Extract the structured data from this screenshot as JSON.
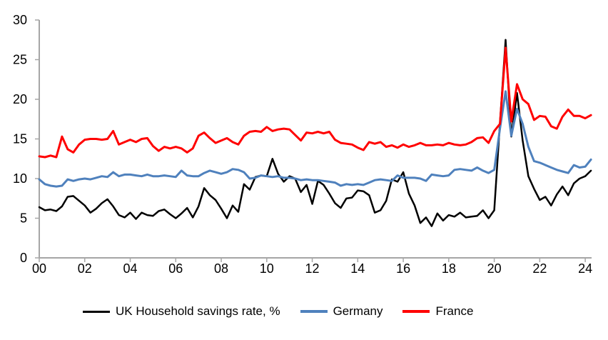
{
  "chart_data": {
    "type": "line",
    "title": "",
    "xlabel": "",
    "ylabel": "",
    "x_axis": {
      "tick_labels": [
        "00",
        "02",
        "04",
        "06",
        "08",
        "10",
        "12",
        "14",
        "16",
        "18",
        "20",
        "22",
        "24"
      ],
      "range": [
        2000,
        2024.25
      ],
      "frequency": "quarterly",
      "quarters_per_tick": 8
    },
    "y_axis": {
      "tick_labels": [
        "0",
        "5",
        "10",
        "15",
        "20",
        "25",
        "30"
      ],
      "ticks": [
        0,
        5,
        10,
        15,
        20,
        25,
        30
      ],
      "range": [
        0,
        30
      ]
    },
    "grid": "off",
    "legend_position": "bottom",
    "colors": {
      "axis": "#a6a6a6",
      "text": "#000000",
      "background": "#ffffff",
      "uk": "#000000",
      "germany": "#4f81bd",
      "france": "#ff0000"
    },
    "series": [
      {
        "name": "UK Household savings rate, %",
        "color": "#000000",
        "values": [
          6.4,
          6.0,
          6.1,
          5.9,
          6.5,
          7.7,
          7.8,
          7.2,
          6.6,
          5.7,
          6.2,
          6.9,
          7.4,
          6.5,
          5.4,
          5.1,
          5.7,
          4.9,
          5.7,
          5.4,
          5.3,
          5.9,
          6.1,
          5.5,
          5.0,
          5.6,
          6.3,
          5.1,
          6.5,
          8.8,
          7.9,
          7.3,
          6.2,
          5.0,
          6.6,
          5.8,
          9.3,
          8.6,
          10.2,
          10.4,
          10.3,
          12.5,
          10.6,
          9.6,
          10.3,
          10.0,
          8.3,
          9.2,
          6.8,
          9.7,
          9.2,
          8.1,
          6.9,
          6.3,
          7.5,
          7.6,
          8.5,
          8.4,
          7.9,
          5.7,
          6.0,
          7.2,
          9.9,
          9.6,
          10.8,
          8.1,
          6.6,
          4.4,
          5.1,
          4.0,
          5.6,
          4.7,
          5.4,
          5.2,
          5.7,
          5.1,
          5.2,
          5.3,
          6.0,
          5.0,
          6.0,
          17.0,
          27.5,
          15.3,
          20.8,
          14.8,
          10.3,
          8.7,
          7.3,
          7.7,
          6.6,
          8.0,
          9.0,
          7.9,
          9.4,
          10.0,
          10.3,
          11.0
        ]
      },
      {
        "name": "Germany",
        "color": "#4f81bd",
        "values": [
          9.9,
          9.3,
          9.1,
          9.0,
          9.1,
          9.9,
          9.7,
          9.9,
          10.0,
          9.9,
          10.1,
          10.3,
          10.2,
          10.8,
          10.3,
          10.5,
          10.5,
          10.4,
          10.3,
          10.5,
          10.3,
          10.3,
          10.4,
          10.3,
          10.2,
          11.0,
          10.4,
          10.3,
          10.3,
          10.7,
          11.0,
          10.8,
          10.6,
          10.8,
          11.2,
          11.1,
          10.8,
          10.0,
          10.1,
          10.4,
          10.3,
          10.2,
          10.3,
          10.1,
          10.1,
          10.0,
          9.8,
          9.9,
          9.8,
          9.8,
          9.7,
          9.6,
          9.5,
          9.1,
          9.3,
          9.2,
          9.3,
          9.2,
          9.5,
          9.8,
          9.9,
          9.8,
          9.7,
          10.4,
          10.1,
          10.1,
          10.1,
          10.0,
          9.7,
          10.5,
          10.4,
          10.3,
          10.4,
          11.1,
          11.2,
          11.1,
          11.0,
          11.4,
          11.0,
          10.7,
          11.1,
          16.3,
          21.0,
          15.4,
          18.8,
          16.9,
          14.0,
          12.2,
          12.0,
          11.7,
          11.4,
          11.1,
          10.9,
          10.7,
          11.7,
          11.4,
          11.5,
          12.4
        ]
      },
      {
        "name": "France",
        "color": "#ff0000",
        "values": [
          12.8,
          12.7,
          12.9,
          12.7,
          15.3,
          13.7,
          13.3,
          14.3,
          14.9,
          15.0,
          15.0,
          14.9,
          15.0,
          16.0,
          14.3,
          14.6,
          14.9,
          14.6,
          15.0,
          15.1,
          14.1,
          13.5,
          14.0,
          13.8,
          14.0,
          13.8,
          13.3,
          13.8,
          15.4,
          15.8,
          15.1,
          14.5,
          14.8,
          15.1,
          14.6,
          14.3,
          15.4,
          15.9,
          16.0,
          15.9,
          16.5,
          16.0,
          16.2,
          16.3,
          16.2,
          15.5,
          14.8,
          15.8,
          15.7,
          15.9,
          15.7,
          15.9,
          14.9,
          14.5,
          14.4,
          14.3,
          13.9,
          13.6,
          14.6,
          14.4,
          14.6,
          14.0,
          14.2,
          13.9,
          14.3,
          14.0,
          14.2,
          14.5,
          14.2,
          14.2,
          14.3,
          14.2,
          14.5,
          14.3,
          14.2,
          14.3,
          14.6,
          15.1,
          15.2,
          14.5,
          16.0,
          16.9,
          26.5,
          17.2,
          21.9,
          20.0,
          19.4,
          17.4,
          17.9,
          17.8,
          16.6,
          16.3,
          17.8,
          18.7,
          17.9,
          17.9,
          17.6,
          18.0
        ]
      }
    ]
  },
  "legend": {
    "uk_label": "UK Household savings rate, %",
    "germany_label": "Germany",
    "france_label": "France"
  }
}
